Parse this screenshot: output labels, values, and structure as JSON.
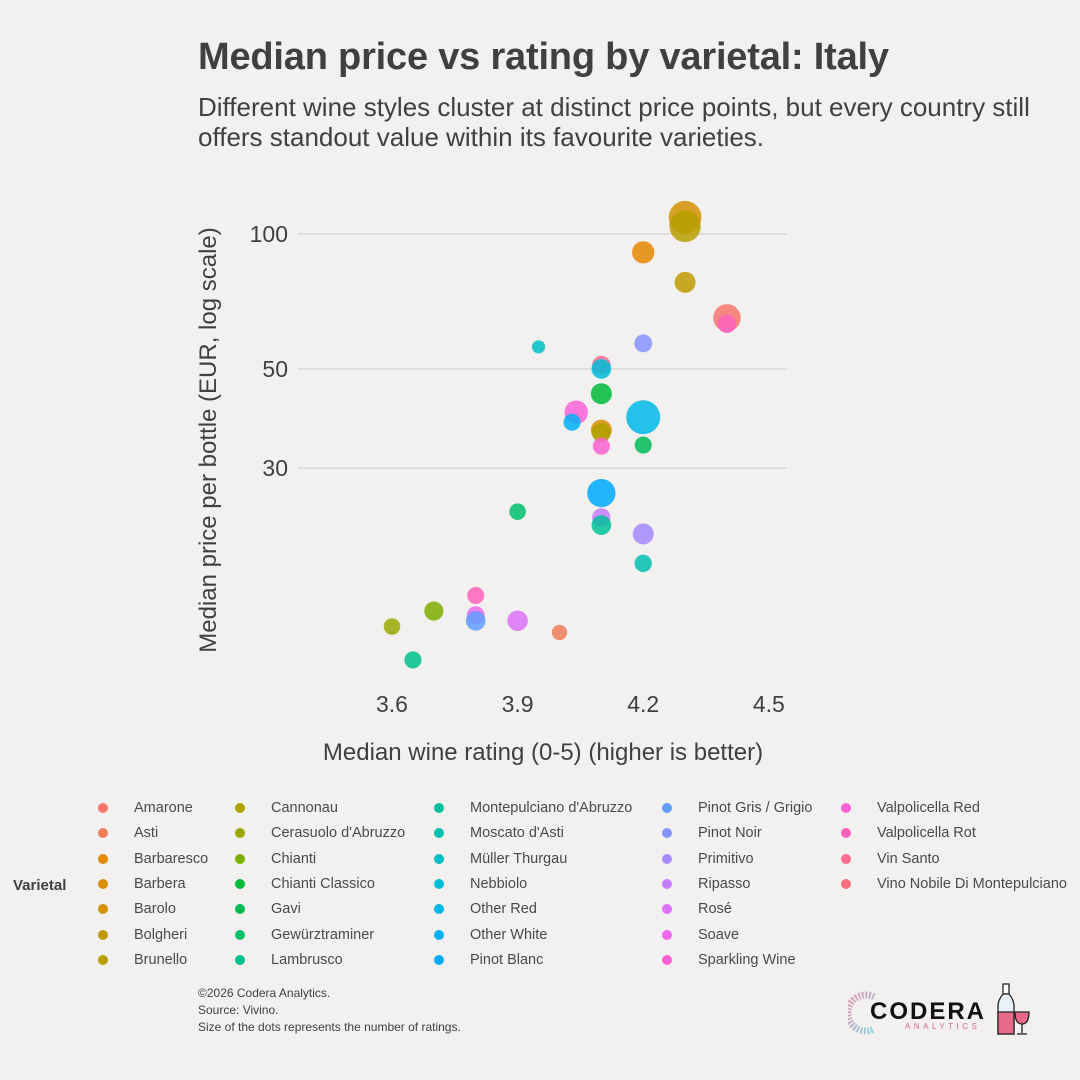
{
  "title": "Median price vs rating by varietal: Italy",
  "subtitle": "Different wine styles cluster at distinct price points, but every country still offers standout value within its favourite varieties.",
  "footer": {
    "copyright": "©2026 Codera Analytics.",
    "source": "Source: Vivino.",
    "note": "Size of the dots represents the number of ratings."
  },
  "logo": {
    "name": "CODERA",
    "sub": "ANALYTICS",
    "icon": "wine-bottle-glass-icon"
  },
  "chart_data": {
    "type": "scatter",
    "title": "Median price vs rating by varietal: Italy",
    "xlabel": "Median wine rating (0-5) (higher is better)",
    "ylabel": "Median price per bottle (EUR, log scale)",
    "xlim": [
      3.52,
      4.54
    ],
    "ylim": [
      10.2,
      120
    ],
    "yscale": "log",
    "xticks": [
      3.6,
      3.9,
      4.2,
      4.5
    ],
    "xtick_labels": [
      "3.6",
      "3.9",
      "4.2",
      "4.5"
    ],
    "yticks": [
      30,
      50,
      100
    ],
    "ytick_labels": [
      "30",
      "50",
      "100"
    ],
    "grid": "horizontal-major",
    "legend_title": "Varietal",
    "legend_placement": "bottom",
    "size_encodes": "number of ratings (relative)",
    "points": [
      {
        "varietal": "Barolo",
        "rating": 4.3,
        "price": 109,
        "size": 0.95,
        "color": "#D39200"
      },
      {
        "varietal": "Brunello",
        "rating": 4.3,
        "price": 104,
        "size": 0.9,
        "color": "#B79F00"
      },
      {
        "varietal": "Barbaresco",
        "rating": 4.2,
        "price": 91,
        "size": 0.55,
        "color": "#E58700"
      },
      {
        "varietal": "Bolgheri",
        "rating": 4.3,
        "price": 78,
        "size": 0.5,
        "color": "#C09B00"
      },
      {
        "varietal": "Amarone",
        "rating": 4.4,
        "price": 65,
        "size": 0.75,
        "color": "#F8766D"
      },
      {
        "varietal": "Valpolicella Rot",
        "rating": 4.4,
        "price": 63,
        "size": 0.4,
        "color": "#FF62BC"
      },
      {
        "varietal": "Müller Thurgau",
        "rating": 3.95,
        "price": 56,
        "size": 0.2,
        "color": "#00BFC4"
      },
      {
        "varietal": "Pinot Noir",
        "rating": 4.2,
        "price": 57,
        "size": 0.38,
        "color": "#8494FF"
      },
      {
        "varietal": "Vin Santo",
        "rating": 4.1,
        "price": 51,
        "size": 0.4,
        "color": "#FF6C91"
      },
      {
        "varietal": "Nebbiolo",
        "rating": 4.1,
        "price": 50,
        "size": 0.45,
        "color": "#00BCD8"
      },
      {
        "varietal": "Chianti Classico",
        "rating": 4.1,
        "price": 44,
        "size": 0.5,
        "color": "#00BA38"
      },
      {
        "varietal": "Valpolicella Red",
        "rating": 4.04,
        "price": 40,
        "size": 0.6,
        "color": "#FB61D7"
      },
      {
        "varietal": "Other White",
        "rating": 4.03,
        "price": 38,
        "size": 0.35,
        "color": "#00B0F6"
      },
      {
        "varietal": "Other Red",
        "rating": 4.2,
        "price": 39,
        "size": 1.0,
        "color": "#00B8E7"
      },
      {
        "varietal": "Barbera",
        "rating": 4.1,
        "price": 36.5,
        "size": 0.5,
        "color": "#DB8E00"
      },
      {
        "varietal": "Cannonau",
        "rating": 4.1,
        "price": 36,
        "size": 0.42,
        "color": "#AEA200"
      },
      {
        "varietal": "Sparkling Wine",
        "rating": 4.1,
        "price": 33.6,
        "size": 0.35,
        "color": "#FD61D1"
      },
      {
        "varietal": "Gavi",
        "rating": 4.2,
        "price": 33.8,
        "size": 0.35,
        "color": "#00BC56"
      },
      {
        "varietal": "Pinot Blanc",
        "rating": 4.1,
        "price": 26.4,
        "size": 0.78,
        "color": "#00A9FF"
      },
      {
        "varietal": "Gewürztraminer",
        "rating": 3.9,
        "price": 24,
        "size": 0.33,
        "color": "#00C06B"
      },
      {
        "varietal": "Ripasso",
        "rating": 4.1,
        "price": 23.3,
        "size": 0.4,
        "color": "#C77CFF"
      },
      {
        "varietal": "Montepulciano d'Abruzzo",
        "rating": 4.1,
        "price": 22.4,
        "size": 0.45,
        "color": "#00C19A"
      },
      {
        "varietal": "Primitivo",
        "rating": 4.2,
        "price": 21.4,
        "size": 0.5,
        "color": "#A58AFF"
      },
      {
        "varietal": "Moscato d'Asti",
        "rating": 4.2,
        "price": 18.4,
        "size": 0.36,
        "color": "#00BFB0"
      },
      {
        "varietal": "Valpolicella Rot",
        "rating": 3.8,
        "price": 15.6,
        "size": 0.35,
        "color": "#FF62BC"
      },
      {
        "varietal": "Soave",
        "rating": 3.8,
        "price": 14.1,
        "size": 0.38,
        "color": "#ED68ED"
      },
      {
        "varietal": "Pinot Gris / Grigio",
        "rating": 3.8,
        "price": 13.7,
        "size": 0.45,
        "color": "#619CFF"
      },
      {
        "varietal": "Rosé",
        "rating": 3.9,
        "price": 13.7,
        "size": 0.48,
        "color": "#DC71FA"
      },
      {
        "varietal": "Chianti",
        "rating": 3.7,
        "price": 14.4,
        "size": 0.43,
        "color": "#7CAE00"
      },
      {
        "varietal": "Cerasuolo d'Abruzzo",
        "rating": 3.6,
        "price": 13.3,
        "size": 0.33,
        "color": "#9AA800"
      },
      {
        "varietal": "Asti",
        "rating": 4.0,
        "price": 12.9,
        "size": 0.28,
        "color": "#F07E58"
      },
      {
        "varietal": "Lambrusco",
        "rating": 3.65,
        "price": 11.2,
        "size": 0.35,
        "color": "#00C08A"
      }
    ]
  },
  "legend": {
    "title": "Varietal",
    "columns": [
      [
        {
          "label": "Amarone",
          "color": "#F8766D"
        },
        {
          "label": "Asti",
          "color": "#F07E58"
        },
        {
          "label": "Barbaresco",
          "color": "#E58700"
        },
        {
          "label": "Barbera",
          "color": "#DB8E00"
        },
        {
          "label": "Barolo",
          "color": "#D39200"
        },
        {
          "label": "Bolgheri",
          "color": "#C09B00"
        },
        {
          "label": "Brunello",
          "color": "#B79F00"
        }
      ],
      [
        {
          "label": "Cannonau",
          "color": "#AEA200"
        },
        {
          "label": "Cerasuolo d'Abruzzo",
          "color": "#9AA800"
        },
        {
          "label": "Chianti",
          "color": "#7CAE00"
        },
        {
          "label": "Chianti Classico",
          "color": "#00BA38"
        },
        {
          "label": "Gavi",
          "color": "#00BC56"
        },
        {
          "label": "Gewürztraminer",
          "color": "#00C06B"
        },
        {
          "label": "Lambrusco",
          "color": "#00C08A"
        }
      ],
      [
        {
          "label": "Montepulciano d'Abruzzo",
          "color": "#00C19A"
        },
        {
          "label": "Moscato d'Asti",
          "color": "#00BFB0"
        },
        {
          "label": "Müller Thurgau",
          "color": "#00BFC4"
        },
        {
          "label": "Nebbiolo",
          "color": "#00BCD8"
        },
        {
          "label": "Other Red",
          "color": "#00B8E7"
        },
        {
          "label": "Other White",
          "color": "#00B0F6"
        },
        {
          "label": "Pinot Blanc",
          "color": "#00A9FF"
        }
      ],
      [
        {
          "label": "Pinot Gris / Grigio",
          "color": "#619CFF"
        },
        {
          "label": "Pinot Noir",
          "color": "#8494FF"
        },
        {
          "label": "Primitivo",
          "color": "#A58AFF"
        },
        {
          "label": "Ripasso",
          "color": "#C77CFF"
        },
        {
          "label": "Rosé",
          "color": "#DC71FA"
        },
        {
          "label": "Soave",
          "color": "#ED68ED"
        },
        {
          "label": "Sparkling Wine",
          "color": "#FD61D1"
        }
      ],
      [
        {
          "label": "Valpolicella Red",
          "color": "#FB61D7"
        },
        {
          "label": "Valpolicella Rot",
          "color": "#FF62BC"
        },
        {
          "label": "Vin Santo",
          "color": "#FF6C91"
        },
        {
          "label": "Vino Nobile Di Montepulciano",
          "color": "#FC717F"
        }
      ]
    ]
  }
}
